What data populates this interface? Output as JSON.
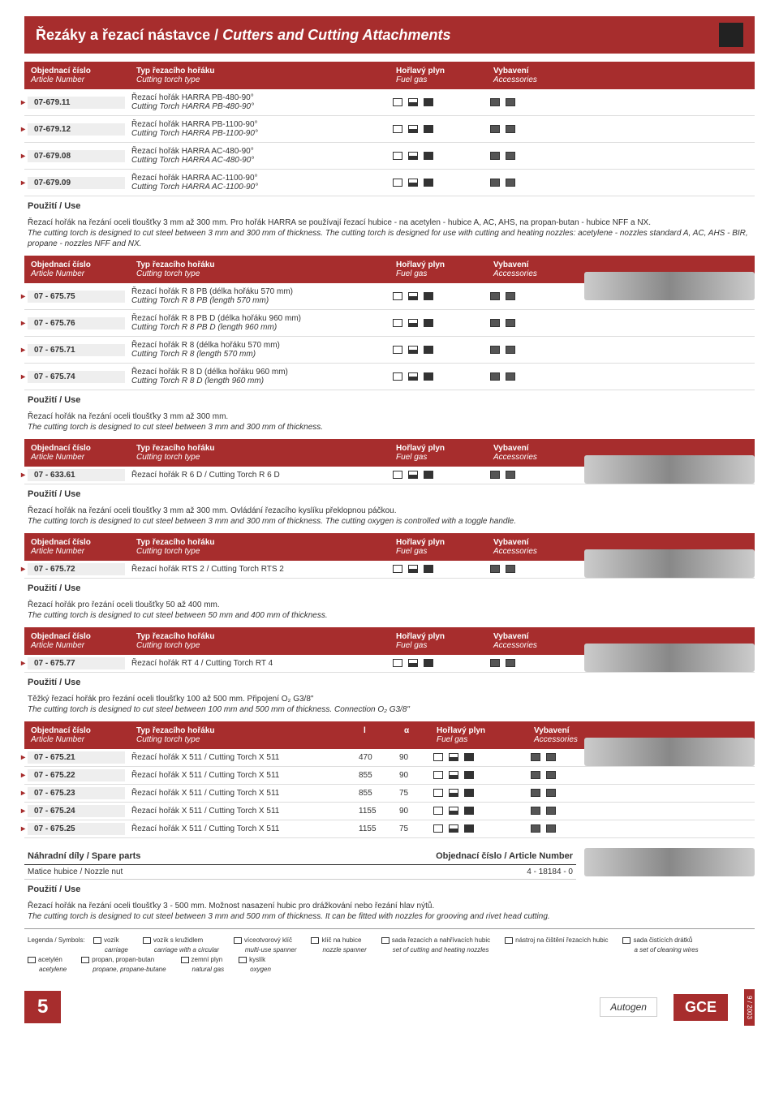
{
  "title_cz": "Řezáky a řezací nástavce /",
  "title_en": "Cutters and Cutting Attachments",
  "hdr": {
    "art_cz": "Objednací číslo",
    "art_en": "Article Number",
    "type_cz": "Typ řezacího hořáku",
    "type_en": "Cutting torch type",
    "fuel_cz": "Hořlavý plyn",
    "fuel_en": "Fuel gas",
    "acc_cz": "Vybavení",
    "acc_en": "Accessories",
    "l": "l",
    "a": "α"
  },
  "use_lbl": "Použití / Use",
  "s1": {
    "rows": [
      {
        "n": "07-679.11",
        "cz": "Řezací hořák HARRA PB-480-90°",
        "en": "Cutting Torch HARRA PB-480-90°"
      },
      {
        "n": "07-679.12",
        "cz": "Řezací hořák HARRA PB-1100-90°",
        "en": "Cutting Torch HARRA PB-1100-90°"
      },
      {
        "n": "07-679.08",
        "cz": "Řezací hořák HARRA AC-480-90°",
        "en": "Cutting Torch HARRA AC-480-90°"
      },
      {
        "n": "07-679.09",
        "cz": "Řezací hořák HARRA AC-1100-90°",
        "en": "Cutting Torch HARRA AC-1100-90°"
      }
    ],
    "use_cz": "Řezací hořák na řezání oceli tloušťky 3 mm až 300 mm. Pro hořák HARRA se používají řezací hubice - na acetylen - hubice A, AC, AHS, na propan-butan - hubice NFF a NX.",
    "use_en": "The cutting torch is designed to cut steel between 3 mm and 300 mm of thickness. The cutting torch is designed for use with cutting and heating nozzles: acetylene - nozzles standard A, AC, AHS - BIR, propane - nozzles NFF and NX."
  },
  "s2": {
    "rows": [
      {
        "n": "07 - 675.75",
        "cz": "Řezací hořák R 8 PB (délka hořáku 570 mm)",
        "en": "Cutting Torch R 8 PB (length 570 mm)"
      },
      {
        "n": "07 - 675.76",
        "cz": "Řezací hořák R 8 PB D (délka hořáku 960 mm)",
        "en": "Cutting Torch R 8 PB D (length 960 mm)"
      },
      {
        "n": "07 - 675.71",
        "cz": "Řezací hořák R 8 (délka hořáku 570 mm)",
        "en": "Cutting Torch R 8 (length 570 mm)"
      },
      {
        "n": "07 - 675.74",
        "cz": "Řezací hořák R 8 D (délka hořáku 960 mm)",
        "en": "Cutting Torch R 8 D (length 960 mm)"
      }
    ],
    "use_cz": "Řezací hořák na řezání oceli tloušťky 3 mm až 300 mm.",
    "use_en": "The cutting torch is designed to cut steel between 3 mm and 300 mm of thickness."
  },
  "s3": {
    "rows": [
      {
        "n": "07 - 633.61",
        "cz": "Řezací hořák R 6 D / Cutting Torch R 6 D"
      }
    ],
    "use_cz": "Řezací hořák na řezání oceli tloušťky 3 mm až 300 mm. Ovládání řezacího kyslíku překlopnou páčkou.",
    "use_en": "The cutting torch is designed to cut steel between 3 mm and 300 mm of thickness. The cutting oxygen is controlled with a toggle handle."
  },
  "s4": {
    "rows": [
      {
        "n": "07 - 675.72",
        "cz": "Řezací hořák RTS 2 / Cutting Torch RTS 2"
      }
    ],
    "use_cz": "Řezací hořák pro řezání oceli tloušťky 50 až 400 mm.",
    "use_en": "The cutting torch is designed to cut steel between 50 mm and 400 mm of thickness."
  },
  "s5": {
    "rows": [
      {
        "n": "07 - 675.77",
        "cz": "Řezací hořák RT 4 / Cutting Torch RT 4"
      }
    ],
    "use_cz": "Těžký řezací hořák pro řezání oceli tloušťky 100 až 500 mm. Připojení O₂ G3/8\"",
    "use_en": "The cutting torch is designed to cut steel between 100 mm and 500 mm of thickness. Connection O₂ G3/8\""
  },
  "s6": {
    "rows": [
      {
        "n": "07 - 675.21",
        "cz": "Řezací hořák X 511 / Cutting Torch X 511",
        "l": "470",
        "a": "90"
      },
      {
        "n": "07 - 675.22",
        "cz": "Řezací hořák X 511 / Cutting Torch X 511",
        "l": "855",
        "a": "90"
      },
      {
        "n": "07 - 675.23",
        "cz": "Řezací hořák X 511 / Cutting Torch X 511",
        "l": "855",
        "a": "75"
      },
      {
        "n": "07 - 675.24",
        "cz": "Řezací hořák X 511 / Cutting Torch X 511",
        "l": "1155",
        "a": "90"
      },
      {
        "n": "07 - 675.25",
        "cz": "Řezací hořák X 511 / Cutting Torch X 511",
        "l": "1155",
        "a": "75"
      }
    ]
  },
  "spare": {
    "hdr_cz": "Náhradní díly / Spare parts",
    "hdr_art": "Objednací číslo / Article Number",
    "item": "Matice hubice / Nozzle nut",
    "num": "4 - 18184 - 0",
    "use_cz": "Řezací hořák na řezání oceli tloušťky 3 - 500 mm. Možnost nasazení hubic pro drážkování nebo řezání hlav nýtů.",
    "use_en": "The cutting torch is designed to cut steel between 3 mm and 500 mm of thickness. It can be fitted with nozzles for grooving and rivet head cutting."
  },
  "leg": {
    "lbl": "Legenda / Symbols:",
    "items": [
      [
        "vozík",
        "carriage"
      ],
      [
        "vozík s kružidlem",
        "carriage with a circular"
      ],
      [
        "víceotvorový klíč",
        "multi-use spanner"
      ],
      [
        "klíč na hubice",
        "nozzle spanner"
      ],
      [
        "sada řezacích a nahřívacích hubic",
        "set of cutting and heating nozzles"
      ],
      [
        "nástroj na čištění řezacích hubic",
        ""
      ],
      [
        "sada čistících drátků",
        "a set of cleaning wires"
      ],
      [
        "acetylén",
        "acetylene"
      ],
      [
        "propan, propan-butan",
        "propane, propane-butane"
      ],
      [
        "zemní plyn",
        "natural gas"
      ],
      [
        "kyslík",
        "oxygen"
      ]
    ]
  },
  "page_num": "5",
  "brand": "Autogen",
  "gce": "GCE",
  "date": "9 / 2003"
}
